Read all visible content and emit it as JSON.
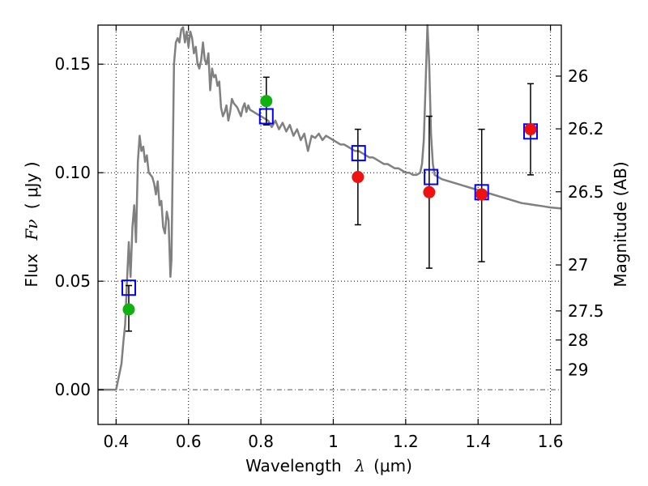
{
  "chart_data": {
    "type": "scatter",
    "xlabel": "Wavelength",
    "xlabel_symbol": "λ",
    "xlabel_unit": "(μm)",
    "ylabel": "Flux",
    "ylabel_symbol": "Fν",
    "ylabel_unit": "( μJy )",
    "ylabel_right": "Magnitude (AB)",
    "xlim": [
      0.35,
      1.63
    ],
    "ylim": [
      -0.016,
      0.168
    ],
    "grid": true,
    "x_ticks": [
      0.4,
      0.6,
      0.8,
      1.0,
      1.2,
      1.4,
      1.6
    ],
    "x_tick_labels": [
      "0.4",
      "0.6",
      "0.8",
      "1",
      "1.2",
      "1.4",
      "1.6"
    ],
    "y_ticks": [
      0.0,
      0.05,
      0.1,
      0.15
    ],
    "y_tick_labels": [
      "0.00",
      "0.05",
      "0.10",
      "0.15"
    ],
    "mag_ticks": [
      {
        "label": "26",
        "flux": 0.1445
      },
      {
        "label": "26.2",
        "flux": 0.1202
      },
      {
        "label": "26.5",
        "flux": 0.0912
      },
      {
        "label": "27",
        "flux": 0.0575
      },
      {
        "label": "27.5",
        "flux": 0.0363
      },
      {
        "label": "28",
        "flux": 0.0229
      },
      {
        "label": "29",
        "flux": 0.0091
      }
    ],
    "sed_model": {
      "name": "model spectrum",
      "color": "#808080",
      "points": [
        [
          0.35,
          0.0
        ],
        [
          0.4,
          0.0
        ],
        [
          0.41,
          0.008
        ],
        [
          0.415,
          0.012
        ],
        [
          0.42,
          0.022
        ],
        [
          0.425,
          0.03
        ],
        [
          0.43,
          0.05
        ],
        [
          0.435,
          0.068
        ],
        [
          0.44,
          0.052
        ],
        [
          0.445,
          0.075
        ],
        [
          0.45,
          0.085
        ],
        [
          0.455,
          0.068
        ],
        [
          0.46,
          0.105
        ],
        [
          0.465,
          0.117
        ],
        [
          0.47,
          0.11
        ],
        [
          0.475,
          0.112
        ],
        [
          0.48,
          0.105
        ],
        [
          0.485,
          0.108
        ],
        [
          0.49,
          0.1
        ],
        [
          0.5,
          0.098
        ],
        [
          0.505,
          0.095
        ],
        [
          0.51,
          0.09
        ],
        [
          0.515,
          0.096
        ],
        [
          0.52,
          0.085
        ],
        [
          0.525,
          0.087
        ],
        [
          0.53,
          0.075
        ],
        [
          0.535,
          0.072
        ],
        [
          0.54,
          0.082
        ],
        [
          0.545,
          0.078
        ],
        [
          0.55,
          0.052
        ],
        [
          0.553,
          0.06
        ],
        [
          0.56,
          0.15
        ],
        [
          0.565,
          0.16
        ],
        [
          0.57,
          0.162
        ],
        [
          0.575,
          0.16
        ],
        [
          0.58,
          0.166
        ],
        [
          0.585,
          0.167
        ],
        [
          0.59,
          0.16
        ],
        [
          0.595,
          0.165
        ],
        [
          0.6,
          0.158
        ],
        [
          0.605,
          0.165
        ],
        [
          0.61,
          0.162
        ],
        [
          0.615,
          0.155
        ],
        [
          0.62,
          0.158
        ],
        [
          0.625,
          0.15
        ],
        [
          0.63,
          0.148
        ],
        [
          0.635,
          0.152
        ],
        [
          0.64,
          0.16
        ],
        [
          0.645,
          0.152
        ],
        [
          0.65,
          0.15
        ],
        [
          0.655,
          0.155
        ],
        [
          0.66,
          0.138
        ],
        [
          0.665,
          0.148
        ],
        [
          0.67,
          0.144
        ],
        [
          0.675,
          0.145
        ],
        [
          0.68,
          0.14
        ],
        [
          0.685,
          0.142
        ],
        [
          0.69,
          0.13
        ],
        [
          0.695,
          0.126
        ],
        [
          0.7,
          0.128
        ],
        [
          0.705,
          0.131
        ],
        [
          0.71,
          0.124
        ],
        [
          0.715,
          0.128
        ],
        [
          0.72,
          0.134
        ],
        [
          0.725,
          0.132
        ],
        [
          0.73,
          0.131
        ],
        [
          0.735,
          0.13
        ],
        [
          0.74,
          0.128
        ],
        [
          0.745,
          0.126
        ],
        [
          0.75,
          0.13
        ],
        [
          0.755,
          0.132
        ],
        [
          0.76,
          0.128
        ],
        [
          0.765,
          0.131
        ],
        [
          0.77,
          0.129
        ],
        [
          0.78,
          0.128
        ],
        [
          0.79,
          0.127
        ],
        [
          0.8,
          0.126
        ],
        [
          0.81,
          0.125
        ],
        [
          0.82,
          0.124
        ],
        [
          0.83,
          0.121
        ],
        [
          0.84,
          0.124
        ],
        [
          0.85,
          0.12
        ],
        [
          0.86,
          0.123
        ],
        [
          0.87,
          0.119
        ],
        [
          0.88,
          0.122
        ],
        [
          0.89,
          0.117
        ],
        [
          0.9,
          0.12
        ],
        [
          0.91,
          0.115
        ],
        [
          0.92,
          0.118
        ],
        [
          0.93,
          0.11
        ],
        [
          0.94,
          0.117
        ],
        [
          0.95,
          0.116
        ],
        [
          0.96,
          0.118
        ],
        [
          0.97,
          0.115
        ],
        [
          0.98,
          0.117
        ],
        [
          0.99,
          0.116
        ],
        [
          1.0,
          0.115
        ],
        [
          1.01,
          0.114
        ],
        [
          1.02,
          0.113
        ],
        [
          1.03,
          0.113
        ],
        [
          1.04,
          0.112
        ],
        [
          1.05,
          0.111
        ],
        [
          1.06,
          0.11
        ],
        [
          1.07,
          0.11
        ],
        [
          1.08,
          0.109
        ],
        [
          1.09,
          0.108
        ],
        [
          1.1,
          0.107
        ],
        [
          1.11,
          0.107
        ],
        [
          1.12,
          0.106
        ],
        [
          1.13,
          0.105
        ],
        [
          1.14,
          0.104
        ],
        [
          1.15,
          0.104
        ],
        [
          1.16,
          0.103
        ],
        [
          1.17,
          0.102
        ],
        [
          1.18,
          0.102
        ],
        [
          1.19,
          0.101
        ],
        [
          1.2,
          0.1
        ],
        [
          1.21,
          0.1
        ],
        [
          1.22,
          0.099
        ],
        [
          1.23,
          0.099
        ],
        [
          1.24,
          0.1
        ],
        [
          1.245,
          0.104
        ],
        [
          1.25,
          0.115
        ],
        [
          1.255,
          0.14
        ],
        [
          1.26,
          0.168
        ],
        [
          1.265,
          0.15
        ],
        [
          1.27,
          0.118
        ],
        [
          1.275,
          0.104
        ],
        [
          1.28,
          0.099
        ],
        [
          1.3,
          0.097
        ],
        [
          1.32,
          0.096
        ],
        [
          1.34,
          0.095
        ],
        [
          1.36,
          0.094
        ],
        [
          1.38,
          0.093
        ],
        [
          1.4,
          0.092
        ],
        [
          1.42,
          0.091
        ],
        [
          1.44,
          0.09
        ],
        [
          1.46,
          0.089
        ],
        [
          1.48,
          0.088
        ],
        [
          1.5,
          0.087
        ],
        [
          1.52,
          0.086
        ],
        [
          1.54,
          0.0855
        ],
        [
          1.56,
          0.085
        ],
        [
          1.58,
          0.0845
        ],
        [
          1.6,
          0.084
        ],
        [
          1.63,
          0.0835
        ]
      ]
    },
    "model_photometry": {
      "name": "model band fluxes",
      "color": "#0000ff",
      "marker": "open-square",
      "points": [
        {
          "x": 0.435,
          "y": 0.047
        },
        {
          "x": 0.815,
          "y": 0.126
        },
        {
          "x": 1.07,
          "y": 0.109
        },
        {
          "x": 1.27,
          "y": 0.098
        },
        {
          "x": 1.41,
          "y": 0.091
        },
        {
          "x": 1.545,
          "y": 0.119
        }
      ]
    },
    "observed_blue": {
      "name": "observed (optical)",
      "color": "#10b010",
      "points": [
        {
          "x": 0.435,
          "y": 0.037,
          "err_low": 0.01,
          "err_high": 0.011
        },
        {
          "x": 0.815,
          "y": 0.133,
          "err_low": 0.011,
          "err_high": 0.011
        }
      ]
    },
    "observed_red": {
      "name": "observed (near-IR)",
      "color": "#ee1111",
      "points": [
        {
          "x": 1.068,
          "y": 0.098,
          "err_low": 0.022,
          "err_high": 0.022
        },
        {
          "x": 1.265,
          "y": 0.091,
          "err_low": 0.035,
          "err_high": 0.035
        },
        {
          "x": 1.41,
          "y": 0.09,
          "err_low": 0.031,
          "err_high": 0.03
        },
        {
          "x": 1.545,
          "y": 0.12,
          "err_low": 0.021,
          "err_high": 0.021
        }
      ]
    }
  }
}
